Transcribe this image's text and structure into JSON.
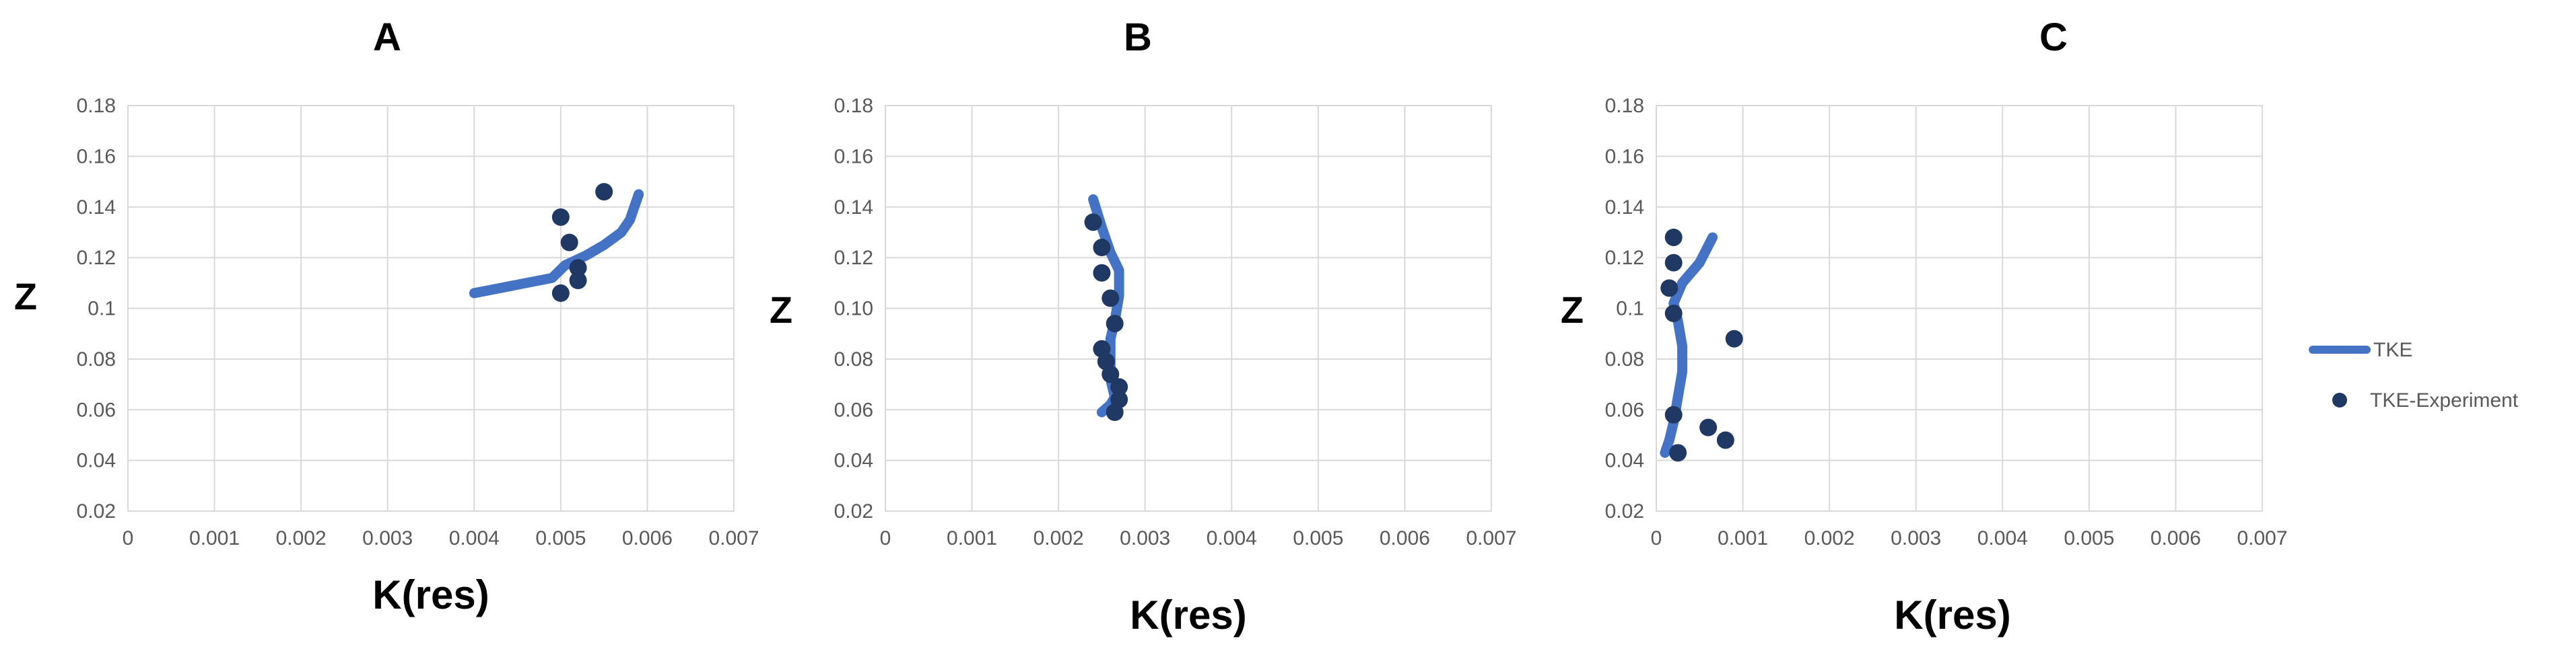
{
  "chart_data": [
    {
      "type": "scatter",
      "title": "A",
      "xlabel": "K(res)",
      "ylabel": "Z",
      "xlim": [
        0,
        0.007
      ],
      "ylim": [
        0.02,
        0.18
      ],
      "xticks": [
        "0",
        "0.001",
        "0.002",
        "0.003",
        "0.004",
        "0.005",
        "0.006",
        "0.007"
      ],
      "yticks": [
        "0.02",
        "0.04",
        "0.06",
        "0.08",
        "0.1",
        "0.12",
        "0.14",
        "0.16",
        "0.18"
      ],
      "grid": true,
      "series": [
        {
          "name": "TKE",
          "style": "line",
          "color": "#4472c4",
          "x": [
            0.004,
            0.0043,
            0.0046,
            0.0049,
            0.00505,
            0.0053,
            0.0055,
            0.0057,
            0.0058,
            0.00585,
            0.0059
          ],
          "y": [
            0.106,
            0.108,
            0.11,
            0.112,
            0.117,
            0.121,
            0.125,
            0.13,
            0.135,
            0.14,
            0.145
          ]
        },
        {
          "name": "TKE-Experiment",
          "style": "markers",
          "color": "#203864",
          "x": [
            0.005,
            0.0052,
            0.0052,
            0.0051,
            0.005,
            0.0055
          ],
          "y": [
            0.106,
            0.111,
            0.116,
            0.126,
            0.136,
            0.146
          ]
        }
      ]
    },
    {
      "type": "scatter",
      "title": "B",
      "xlabel": "K(res)",
      "ylabel": "Z",
      "xlim": [
        0,
        0.007
      ],
      "ylim": [
        0.02,
        0.18
      ],
      "xticks": [
        "0",
        "0.001",
        "0.002",
        "0.003",
        "0.004",
        "0.005",
        "0.006",
        "0.007"
      ],
      "yticks": [
        "0.02",
        "0.04",
        "0.06",
        "0.08",
        "0.10",
        "0.12",
        "0.14",
        "0.16",
        "0.18"
      ],
      "grid": true,
      "series": [
        {
          "name": "TKE",
          "style": "line",
          "color": "#4472c4",
          "x": [
            0.0024,
            0.0025,
            0.0026,
            0.0027,
            0.0027,
            0.00265,
            0.0026,
            0.0026,
            0.0026,
            0.00265,
            0.0026,
            0.0025
          ],
          "y": [
            0.143,
            0.132,
            0.122,
            0.115,
            0.105,
            0.095,
            0.088,
            0.08,
            0.072,
            0.065,
            0.062,
            0.059
          ]
        },
        {
          "name": "TKE-Experiment",
          "style": "markers",
          "color": "#203864",
          "x": [
            0.0024,
            0.0025,
            0.0025,
            0.0026,
            0.00265,
            0.0025,
            0.00255,
            0.0026,
            0.0027,
            0.0027,
            0.00265
          ],
          "y": [
            0.134,
            0.124,
            0.114,
            0.104,
            0.094,
            0.084,
            0.079,
            0.074,
            0.069,
            0.064,
            0.059
          ]
        }
      ]
    },
    {
      "type": "scatter",
      "title": "C",
      "xlabel": "K(res)",
      "ylabel": "Z",
      "xlim": [
        0,
        0.007
      ],
      "ylim": [
        0.02,
        0.18
      ],
      "xticks": [
        "0",
        "0.001",
        "0.002",
        "0.003",
        "0.004",
        "0.005",
        "0.006",
        "0.007"
      ],
      "yticks": [
        "0.02",
        "0.04",
        "0.06",
        "0.08",
        "0.1",
        "0.12",
        "0.14",
        "0.16",
        "0.18"
      ],
      "grid": true,
      "series": [
        {
          "name": "TKE",
          "style": "line",
          "color": "#4472c4",
          "x": [
            0.00065,
            0.0005,
            0.0003,
            0.0002,
            0.00025,
            0.0003,
            0.0003,
            0.00025,
            0.0002,
            0.00015,
            0.0001
          ],
          "y": [
            0.128,
            0.118,
            0.11,
            0.102,
            0.095,
            0.085,
            0.075,
            0.065,
            0.055,
            0.048,
            0.043
          ]
        },
        {
          "name": "TKE-Experiment",
          "style": "markers",
          "color": "#203864",
          "x": [
            0.0002,
            0.0002,
            0.00015,
            0.0002,
            0.0009,
            0.0002,
            0.0006,
            0.0008,
            0.00025
          ],
          "y": [
            0.128,
            0.118,
            0.108,
            0.098,
            0.088,
            0.058,
            0.053,
            0.048,
            0.043
          ]
        }
      ]
    }
  ],
  "legend": {
    "placement": "right",
    "items": [
      {
        "label": "TKE",
        "kind": "line",
        "color": "#4472c4"
      },
      {
        "label": "TKE-Experiment",
        "kind": "marker",
        "color": "#203864"
      }
    ]
  }
}
